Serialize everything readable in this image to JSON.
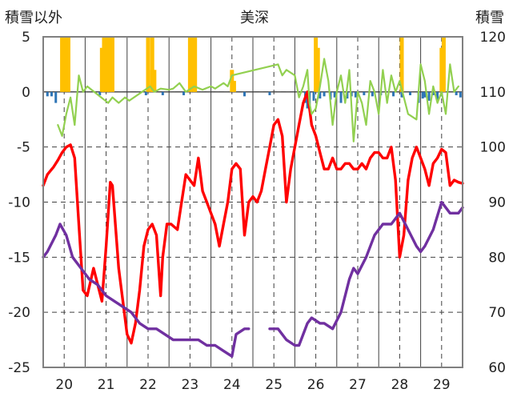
{
  "chart_data": {
    "type": "line",
    "title": "美深",
    "ylabel_left": "積雪以外",
    "ylabel_right": "積雪",
    "x_ticks": [
      "20",
      "21",
      "22",
      "23",
      "24",
      "25",
      "26",
      "27",
      "28",
      "29"
    ],
    "ylim_left": [
      -25,
      5
    ],
    "ylim_right": [
      60,
      120
    ],
    "left_ticks": [
      "5",
      "0",
      "-5",
      "-10",
      "-15",
      "-20",
      "-25"
    ],
    "right_ticks": [
      "120",
      "110",
      "100",
      "90",
      "80",
      "70",
      "60"
    ],
    "xlim": [
      19.5,
      29.5
    ],
    "grid": true,
    "colors": {
      "temperature": "#ff0000",
      "snow_depth": "#7030a0",
      "wind": "#92d050",
      "precip": "#ffc000",
      "snow_change": "#2e75b6",
      "grid": "#404040",
      "frame": "#808080"
    },
    "series": [
      {
        "key": "temperature",
        "axis": "left",
        "x": [
          19.5,
          19.6,
          19.75,
          19.85,
          19.95,
          20.05,
          20.15,
          20.25,
          20.35,
          20.45,
          20.55,
          20.7,
          20.9,
          21.0,
          21.1,
          21.15,
          21.3,
          21.5,
          21.6,
          21.7,
          21.8,
          21.9,
          22.0,
          22.1,
          22.2,
          22.3,
          22.35,
          22.45,
          22.55,
          22.7,
          22.8,
          22.9,
          23.0,
          23.1,
          23.2,
          23.3,
          23.4,
          23.5,
          23.6,
          23.7,
          23.8,
          23.9,
          24.0,
          24.1,
          24.2,
          24.3,
          24.4,
          24.5,
          24.6,
          24.7,
          24.8,
          24.9,
          25.0,
          25.1,
          25.2,
          25.3,
          25.4,
          25.5,
          25.6,
          25.7,
          25.8,
          25.9,
          26.0,
          26.1,
          26.2,
          26.3,
          26.4,
          26.5,
          26.6,
          26.7,
          26.8,
          26.9,
          27.0,
          27.1,
          27.2,
          27.3,
          27.4,
          27.5,
          27.6,
          27.7,
          27.8,
          27.9,
          28.0,
          28.1,
          28.2,
          28.3,
          28.4,
          28.5,
          28.6,
          28.7,
          28.8,
          28.9,
          29.0,
          29.1,
          29.2,
          29.3,
          29.4,
          29.5
        ],
        "y": [
          -8.5,
          -7.5,
          -6.8,
          -6.2,
          -5.5,
          -5.0,
          -4.8,
          -6.0,
          -12.0,
          -18.0,
          -18.5,
          -16.0,
          -19.0,
          -14.0,
          -8.2,
          -8.5,
          -16.0,
          -22.0,
          -22.8,
          -21.0,
          -18.0,
          -14.0,
          -12.5,
          -12.0,
          -13.0,
          -18.5,
          -15.0,
          -12.0,
          -12.0,
          -12.5,
          -10.0,
          -7.5,
          -8.0,
          -8.5,
          -6.0,
          -9.0,
          -10.0,
          -11.0,
          -12.0,
          -14.0,
          -12.0,
          -10.0,
          -7.0,
          -6.5,
          -7.0,
          -13.0,
          -10.0,
          -9.5,
          -10.0,
          -9.0,
          -7.0,
          -5.0,
          -3.0,
          -2.5,
          -4.0,
          -10.0,
          -7.0,
          -5.0,
          -3.0,
          -1.0,
          0.0,
          -3.0,
          -4.0,
          -5.5,
          -7.0,
          -7.0,
          -6.0,
          -7.0,
          -7.0,
          -6.5,
          -6.5,
          -7.0,
          -7.0,
          -6.5,
          -7.0,
          -6.0,
          -5.5,
          -5.5,
          -6.0,
          -6.0,
          -5.0,
          -8.0,
          -15.0,
          -13.0,
          -8.0,
          -6.0,
          -5.0,
          -6.0,
          -7.0,
          -8.5,
          -6.5,
          -6.0,
          -5.2,
          -5.5,
          -8.5,
          -8.0,
          -8.2,
          -8.3
        ]
      },
      {
        "key": "snow_depth",
        "axis": "right",
        "segments": [
          {
            "x": [
              19.5,
              19.6,
              19.8,
              19.9,
              20.05,
              20.2,
              20.4,
              20.6,
              20.8,
              21.0,
              21.2,
              21.4,
              21.6,
              21.8,
              22.0,
              22.2,
              22.4,
              22.6,
              22.8,
              23.0,
              23.2,
              23.4,
              23.6,
              23.8,
              24.0,
              24.1,
              24.3,
              24.4
            ],
            "y": [
              80,
              81,
              84,
              86,
              84,
              80,
              78,
              76,
              75,
              73,
              72,
              71,
              70,
              68,
              67,
              67,
              66,
              65,
              65,
              65,
              65,
              64,
              64,
              63,
              62,
              66,
              67,
              67
            ]
          },
          {
            "x": [
              24.9,
              25.1,
              25.3,
              25.5,
              25.6,
              25.8,
              25.9,
              26.1,
              26.2,
              26.4,
              26.6,
              26.8,
              26.9,
              27.0,
              27.2,
              27.4,
              27.6,
              27.8,
              28.0,
              28.2,
              28.4,
              28.5,
              28.6,
              28.8,
              29.0,
              29.2,
              29.4,
              29.5
            ],
            "y": [
              67,
              67,
              65,
              64,
              64,
              68,
              69,
              68,
              68,
              67,
              70,
              76,
              78,
              77,
              80,
              84,
              86,
              86,
              88,
              85,
              82,
              81,
              82,
              85,
              90,
              88,
              88,
              89
            ]
          }
        ]
      },
      {
        "key": "wind",
        "axis": "left",
        "x": [
          19.85,
          19.95,
          20.05,
          20.15,
          20.25,
          20.35,
          20.45,
          20.55,
          21.05,
          21.15,
          21.3,
          21.45,
          21.55,
          22.05,
          22.15,
          22.3,
          22.5,
          22.6,
          22.75,
          22.9,
          23.1,
          23.3,
          23.5,
          23.6,
          23.8,
          23.9,
          24.0,
          25.1,
          25.2,
          25.3,
          25.5,
          25.6,
          25.7,
          25.8,
          25.85,
          25.9,
          26.0,
          26.1,
          26.2,
          26.3,
          26.4,
          26.5,
          26.6,
          26.7,
          26.8,
          26.9,
          27.0,
          27.1,
          27.2,
          27.3,
          27.4,
          27.5,
          27.6,
          27.7,
          27.8,
          27.9,
          28.0,
          28.2,
          28.4,
          28.5,
          28.6,
          28.7,
          28.8,
          28.9,
          29.0,
          29.1,
          29.2,
          29.3,
          29.4
        ],
        "y": [
          -3,
          -4,
          -2,
          -0.5,
          -3,
          1.5,
          0,
          0.5,
          -1,
          -0.5,
          -1,
          -0.5,
          -0.8,
          0.5,
          0,
          0.3,
          0.2,
          0.3,
          0.8,
          0,
          0.5,
          0.2,
          0.5,
          0.3,
          0.8,
          0.5,
          1.5,
          2.5,
          1.5,
          2,
          1.5,
          -0.5,
          0.5,
          2,
          -1,
          -2,
          -1.5,
          0.5,
          3,
          1,
          -3,
          0,
          1.5,
          -1,
          2,
          -4.5,
          0,
          -1,
          -3,
          1,
          0,
          -2,
          2,
          -1,
          1.5,
          0,
          1,
          -2,
          -2.5,
          2.5,
          1,
          -2,
          0.5,
          -1,
          0,
          -2,
          2.5,
          0,
          0.5
        ]
      }
    ],
    "bars": {
      "precip": {
        "axis": "left",
        "x": [
          19.95,
          20.02,
          20.1,
          20.9,
          20.95,
          21.02,
          21.08,
          21.15,
          22.0,
          22.1,
          22.1,
          22.15,
          23.0,
          23.07,
          23.12,
          24.0,
          24.05,
          26.0,
          26.05,
          28.05,
          29.0,
          29.05
        ],
        "y": [
          5,
          5,
          5,
          4,
          5,
          5,
          5,
          5,
          5,
          5,
          2,
          2,
          5,
          5,
          5,
          2,
          1,
          5,
          4,
          5,
          4,
          5
        ]
      },
      "snow_change": {
        "axis": "left",
        "x": [
          19.6,
          19.7,
          19.8,
          20.85,
          21.95,
          22.35,
          22.85,
          24.3,
          24.9,
          25.75,
          25.8,
          25.85,
          25.95,
          26.1,
          26.2,
          26.35,
          26.45,
          26.6,
          26.75,
          26.85,
          26.95,
          27.15,
          27.35,
          27.55,
          27.85,
          28.05,
          28.25,
          28.45,
          28.55,
          28.6,
          28.7,
          28.8,
          28.9,
          29.0,
          29.35,
          29.45
        ],
        "y": [
          -0.4,
          -0.4,
          -1,
          -0.3,
          -0.3,
          -0.3,
          -0.3,
          -0.4,
          -0.3,
          -1,
          -1.5,
          -1.2,
          -0.8,
          -0.6,
          -0.4,
          -0.7,
          -0.5,
          -1,
          -0.6,
          -0.4,
          -0.5,
          -0.3,
          -0.4,
          -0.3,
          -0.4,
          -0.5,
          -0.3,
          -1,
          -0.6,
          -0.5,
          -0.8,
          -0.3,
          -0.8,
          -0.4,
          -0.3,
          -0.5
        ]
      }
    }
  }
}
